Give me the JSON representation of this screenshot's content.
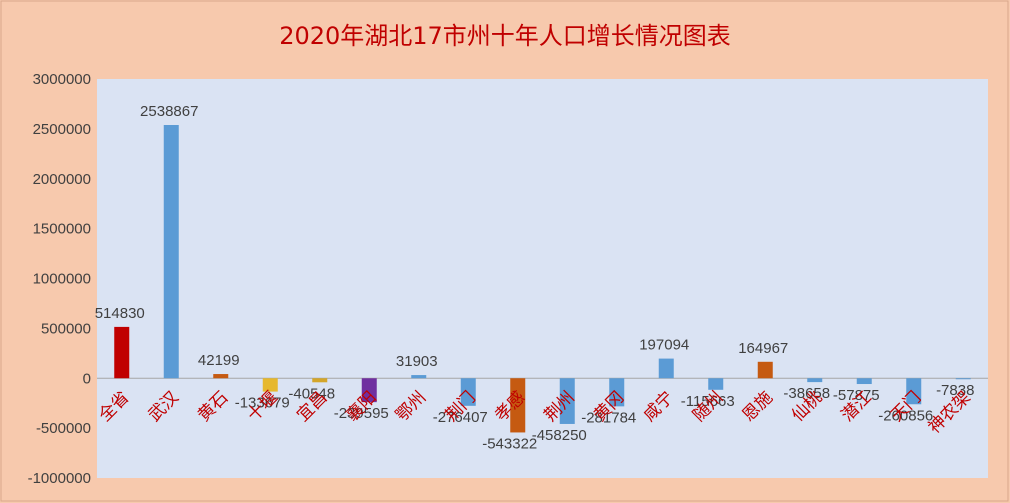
{
  "chart_data": {
    "type": "bar",
    "title": "2020年湖北17市州十年人口增长情况图表",
    "categories": [
      "全省",
      "武汉",
      "黄石",
      "十堰",
      "宜昌",
      "襄阳",
      "鄂州",
      "荆门",
      "孝感",
      "荆州",
      "黄冈",
      "咸宁",
      "随州",
      "恩施",
      "仙桃",
      "潜江",
      "天门",
      "神农架"
    ],
    "values": [
      514830,
      2538867,
      42199,
      -133679,
      -40548,
      -239595,
      31903,
      -276407,
      -543322,
      -458250,
      -281784,
      197094,
      -115663,
      164967,
      -38658,
      -57875,
      -260856,
      -7838
    ],
    "data_labels": [
      "514830",
      "2538867",
      "42199",
      "-133679",
      "-40548",
      "-239595",
      "31903",
      "-276407",
      "-543322",
      "-458250",
      "-281784",
      "197094",
      "-115663",
      "164967",
      "-38658",
      "-57875",
      "-260856",
      "-7838"
    ],
    "bar_colors": [
      "#c00000",
      "#5b9bd5",
      "#c55a11",
      "#e6b82e",
      "#d4a62a",
      "#7030a0",
      "#5b9bd5",
      "#5b9bd5",
      "#c55a11",
      "#5b9bd5",
      "#5b9bd5",
      "#5b9bd5",
      "#5b9bd5",
      "#c55a11",
      "#5b9bd5",
      "#5b9bd5",
      "#5b9bd5",
      "#5b9bd5"
    ],
    "ylim": [
      -1000000,
      3000000
    ],
    "yticks": [
      3000000,
      2500000,
      2000000,
      1500000,
      1000000,
      500000,
      0,
      -500000,
      -1000000
    ],
    "ytick_labels": [
      "3000000",
      "2500000",
      "2000000",
      "1500000",
      "1000000",
      "500000",
      "0",
      "-500000",
      "-1000000"
    ],
    "grid": false,
    "legend": "none",
    "colors": {
      "background": "#f7c9ad",
      "plot_background": "#dae3f3",
      "title": "#c00000",
      "category_label": "#c00000",
      "text": "#404040"
    }
  }
}
